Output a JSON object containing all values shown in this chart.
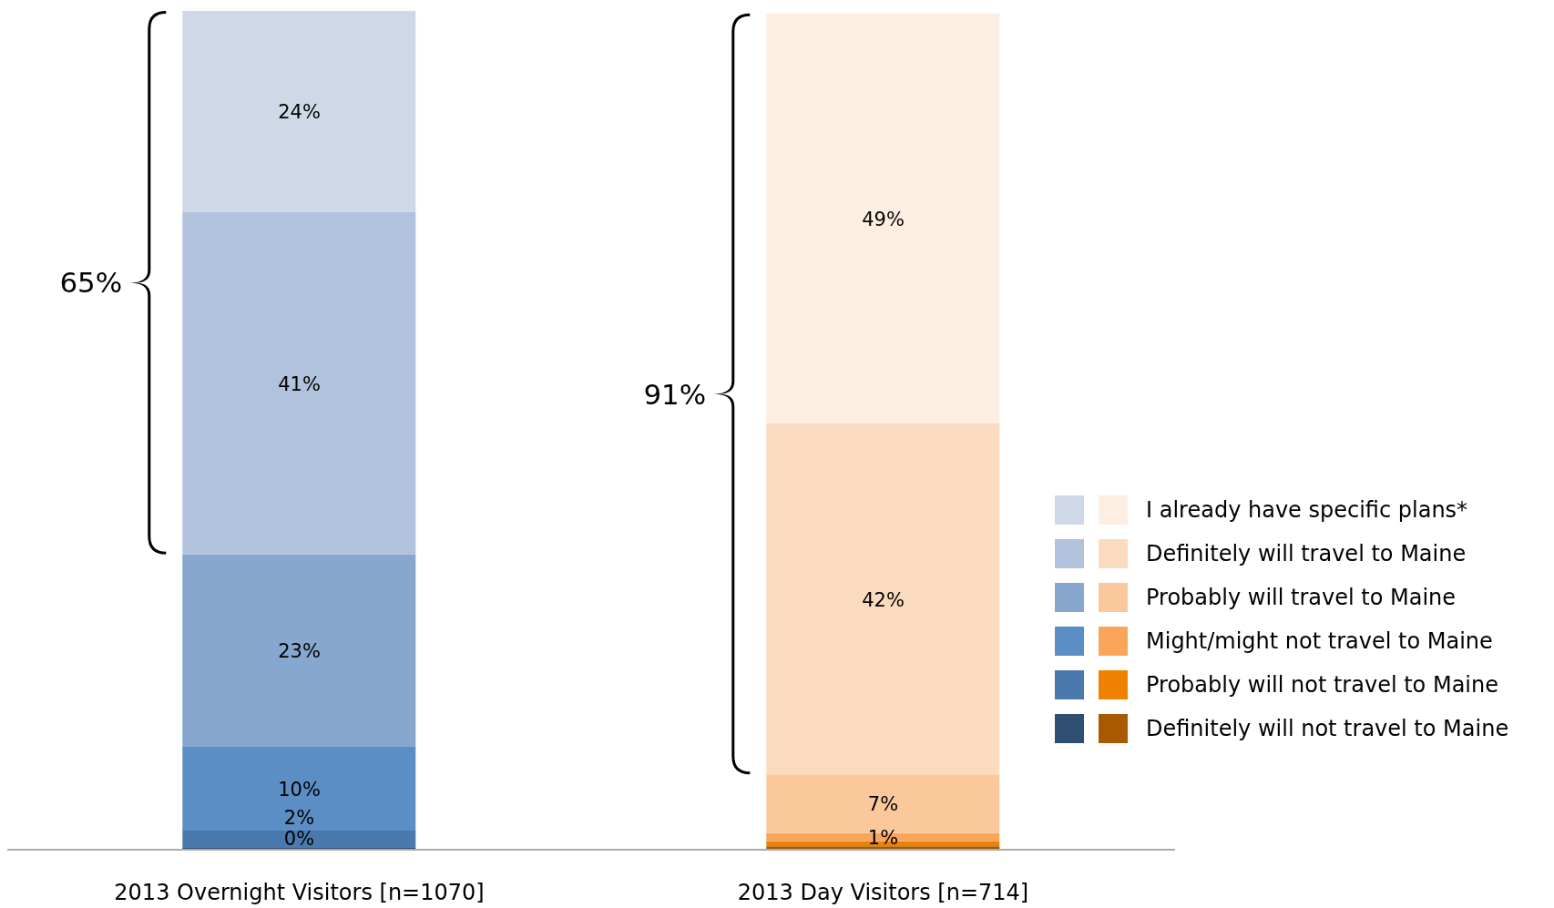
{
  "chart_data": {
    "type": "bar",
    "stacked": true,
    "categories": [
      "2013 Overnight Visitors [n=1070]",
      "2013 Day Visitors [n=714]"
    ],
    "series": [
      {
        "name": "Definitely will not travel to Maine",
        "colors": [
          "#2e4f72",
          "#a95a00"
        ],
        "values": [
          0.3,
          0.4
        ],
        "value_labels": [
          "0%",
          null
        ]
      },
      {
        "name": "Probably will not travel to Maine",
        "colors": [
          "#4a7aad",
          "#ee8100"
        ],
        "values": [
          2,
          0.6
        ],
        "value_labels": [
          "2%",
          null
        ]
      },
      {
        "name": "Might/might not travel to Maine",
        "colors": [
          "#5b8ec4",
          "#f9a65a"
        ],
        "values": [
          10,
          1
        ],
        "value_labels": [
          "10%",
          "1%"
        ]
      },
      {
        "name": "Probably will travel to Maine",
        "colors": [
          "#87a7cf",
          "#fbc89c"
        ],
        "values": [
          23,
          7
        ],
        "value_labels": [
          "23%",
          "7%"
        ]
      },
      {
        "name": "Definitely will travel to Maine",
        "colors": [
          "#b0c2dc",
          "#fbdbc0"
        ],
        "values": [
          41,
          42
        ],
        "value_labels": [
          "41%",
          "42%"
        ]
      },
      {
        "name": "I already have specific plans*",
        "colors": [
          "#cfd8e6",
          "#fdeee2"
        ],
        "values": [
          24,
          49
        ],
        "value_labels": [
          "24%",
          "49%"
        ]
      }
    ],
    "annotations": [
      "65%",
      "91%"
    ],
    "legend": "right"
  }
}
